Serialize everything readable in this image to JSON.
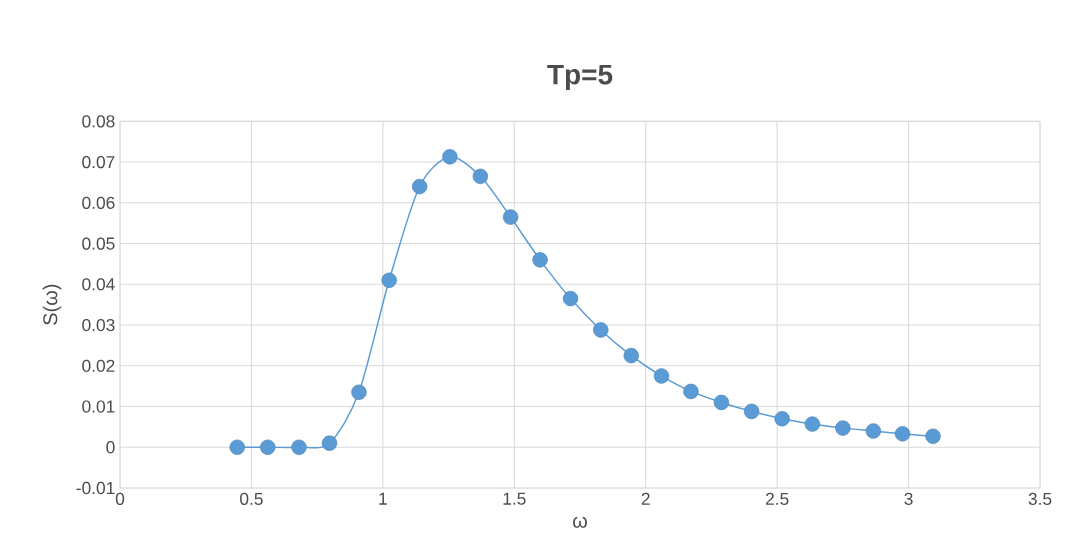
{
  "chart_data": {
    "type": "line",
    "title": "Tp=5",
    "xlabel": "ω",
    "ylabel": "S(ω)",
    "x": [
      0.446,
      0.562,
      0.681,
      0.797,
      0.909,
      1.024,
      1.14,
      1.255,
      1.371,
      1.486,
      1.598,
      1.714,
      1.829,
      1.945,
      2.06,
      2.172,
      2.288,
      2.403,
      2.519,
      2.634,
      2.75,
      2.866,
      2.977,
      3.093
    ],
    "series": [
      {
        "color": "#5b9bd5",
        "values": [
          0,
          0,
          0,
          0.001,
          0.0135,
          0.041,
          0.064,
          0.0713,
          0.0665,
          0.0565,
          0.046,
          0.0365,
          0.0288,
          0.0225,
          0.0175,
          0.0137,
          0.011,
          0.0088,
          0.007,
          0.0057,
          0.0047,
          0.004,
          0.0033,
          0.0027
        ]
      }
    ],
    "xlim": [
      0,
      3.5
    ],
    "ylim": [
      -0.01,
      0.08
    ],
    "xticks": [
      0,
      0.5,
      1,
      1.5,
      2,
      2.5,
      3,
      3.5
    ],
    "yticks": [
      -0.01,
      0,
      0.01,
      0.02,
      0.03,
      0.04,
      0.05,
      0.06,
      0.07,
      0.08
    ],
    "grid": true,
    "marker": "circle",
    "line_style": "solid"
  }
}
